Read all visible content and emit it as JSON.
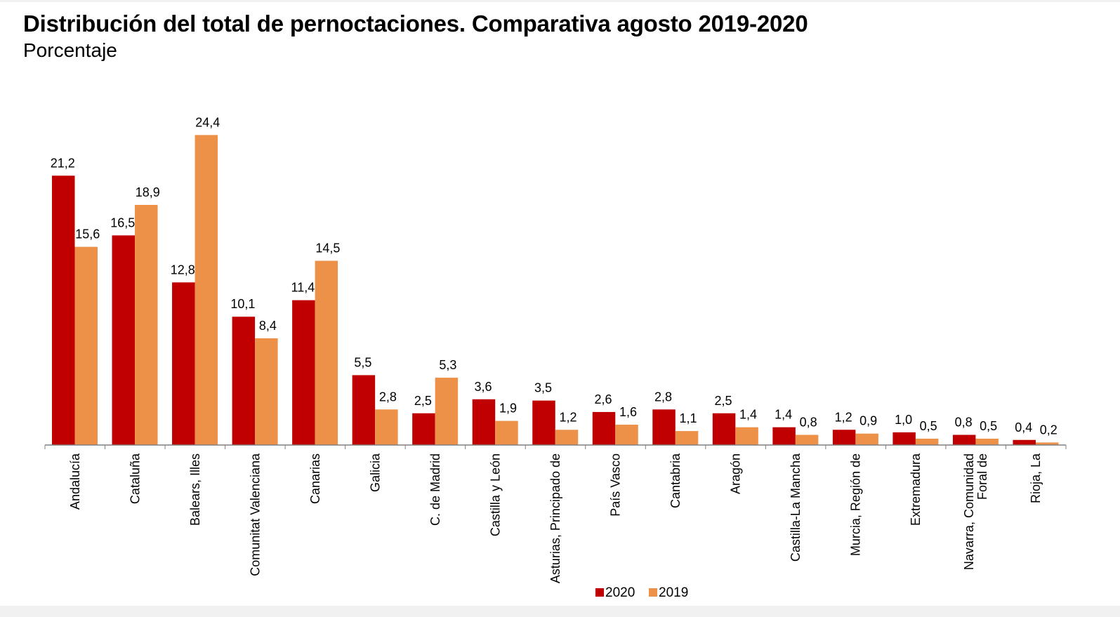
{
  "chart_data": {
    "type": "bar",
    "title": "Distribución del total de pernoctaciones. Comparativa agosto 2019-2020",
    "subtitle": "Porcentaje",
    "xlabel": "",
    "ylabel": "Porcentaje",
    "ylim": [
      0,
      26
    ],
    "grid": false,
    "legend_position": "bottom-center",
    "decimal_separator": ",",
    "categories": [
      [
        "Andalucía"
      ],
      [
        "Cataluña"
      ],
      [
        "Balears, Illes"
      ],
      [
        "Comunitat Valenciana"
      ],
      [
        "Canarias"
      ],
      [
        "Galicia"
      ],
      [
        "C. de Madrid"
      ],
      [
        "Castilla y León"
      ],
      [
        "Asturias, Principado de"
      ],
      [
        "País Vasco"
      ],
      [
        "Cantabria"
      ],
      [
        "Aragón"
      ],
      [
        "Castilla-La Mancha"
      ],
      [
        "Murcia, Región de"
      ],
      [
        "Extremadura"
      ],
      [
        "Navarra, Comunidad",
        "Foral de"
      ],
      [
        "Rioja, La"
      ]
    ],
    "series": [
      {
        "name": "2020",
        "color": "#c00000",
        "values": [
          21.2,
          16.5,
          12.8,
          10.1,
          11.4,
          5.5,
          2.5,
          3.6,
          3.5,
          2.6,
          2.8,
          2.5,
          1.4,
          1.2,
          1.0,
          0.8,
          0.4
        ]
      },
      {
        "name": "2019",
        "color": "#ed9149",
        "values": [
          15.6,
          18.9,
          24.4,
          8.4,
          14.5,
          2.8,
          5.3,
          1.9,
          1.2,
          1.6,
          1.1,
          1.4,
          0.8,
          0.9,
          0.5,
          0.5,
          0.2
        ]
      }
    ],
    "axis_color": "#808080"
  }
}
